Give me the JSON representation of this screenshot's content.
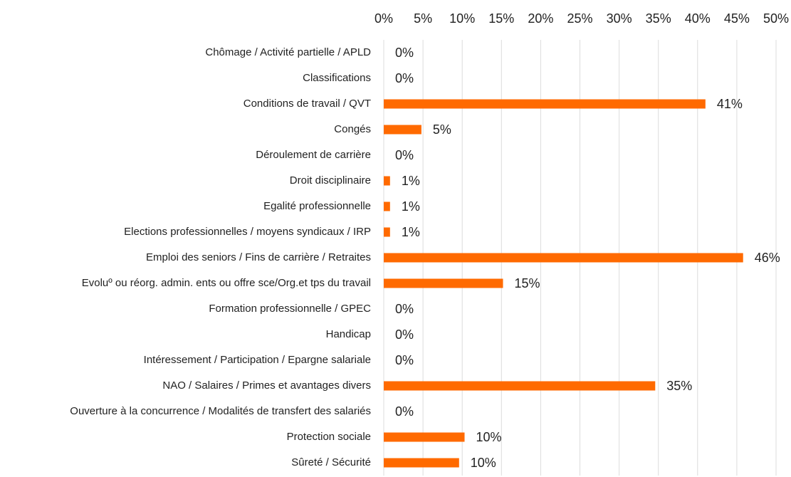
{
  "chart_data": {
    "type": "bar",
    "orientation": "horizontal",
    "categories": [
      "Chômage / Activité partielle / APLD",
      "Classifications",
      "Conditions de travail / QVT",
      "Congés",
      "Déroulement de carrière",
      "Droit disciplinaire",
      "Egalité professionnelle",
      "Elections professionnelles / moyens syndicaux / IRP",
      "Emploi des seniors / Fins de carrière / Retraites",
      "Evoluº ou réorg. admin. ents ou offre sce/Org.et tps du travail",
      "Formation professionnelle / GPEC",
      "Handicap",
      "Intéressement / Participation / Epargne salariale",
      "NAO / Salaires / Primes et avantages divers",
      "Ouverture à la concurrence / Modalités de transfert des salariés",
      "Protection sociale",
      "Sûreté / Sécurité"
    ],
    "values": [
      0,
      0,
      41,
      4.8,
      0,
      0.8,
      0.8,
      0.8,
      45.8,
      15.2,
      0,
      0,
      0,
      34.6,
      0,
      10.3,
      9.6
    ],
    "value_labels": [
      "0%",
      "0%",
      "41%",
      "5%",
      "0%",
      "1%",
      "1%",
      "1%",
      "46%",
      "15%",
      "0%",
      "0%",
      "0%",
      "35%",
      "0%",
      "10%",
      "10%"
    ],
    "color": "#ff6a00",
    "xlim": [
      0,
      50
    ],
    "xticks": [
      {
        "value": 0,
        "label": "0%"
      },
      {
        "value": 5,
        "label": "5%"
      },
      {
        "value": 10,
        "label": "10%"
      },
      {
        "value": 15,
        "label": "15%"
      },
      {
        "value": 20,
        "label": "20%"
      },
      {
        "value": 25,
        "label": "25%"
      },
      {
        "value": 30,
        "label": "30%"
      },
      {
        "value": 35,
        "label": "35%"
      },
      {
        "value": 40,
        "label": "40%"
      },
      {
        "value": 45,
        "label": "45%"
      },
      {
        "value": 50,
        "label": "50%"
      }
    ],
    "grid": true,
    "x_axis_position": "top"
  }
}
